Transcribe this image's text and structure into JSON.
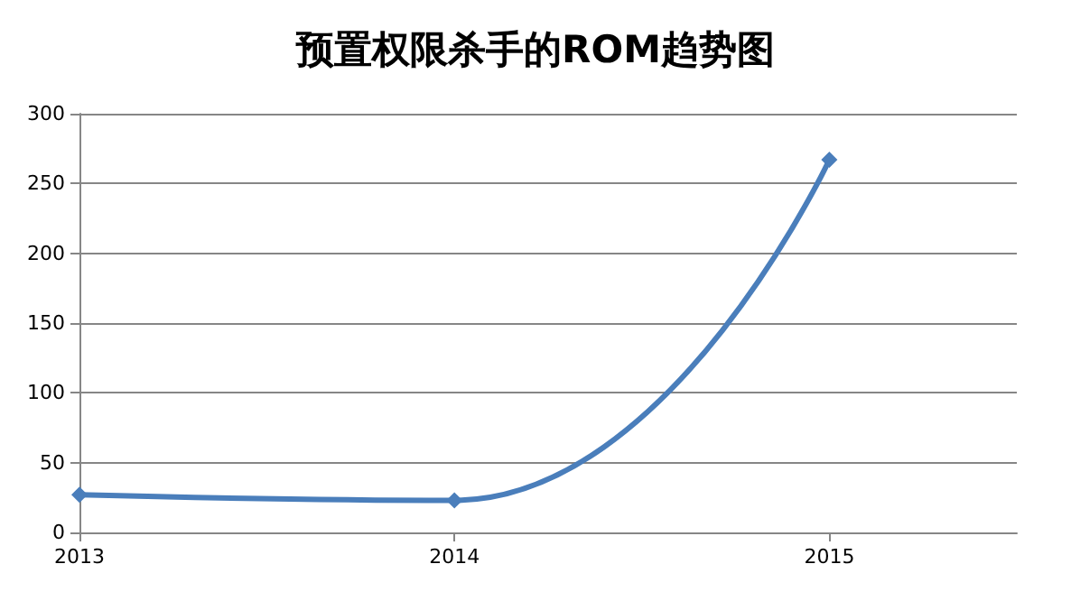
{
  "chart_data": {
    "type": "line",
    "title": "预置权限杀手的ROM趋势图",
    "x": [
      2013,
      2014,
      2015
    ],
    "series": [
      {
        "color": "#4a7ebb",
        "values": [
          27,
          23,
          267
        ]
      }
    ],
    "xlim": [
      2013,
      2015.5
    ],
    "xticks": [
      2013,
      2014,
      2015
    ],
    "ylim": [
      0,
      300
    ],
    "yticks": [
      0,
      50,
      100,
      150,
      200,
      250,
      300
    ],
    "grid": "y",
    "marker": "diamond",
    "line_style": "solid"
  }
}
